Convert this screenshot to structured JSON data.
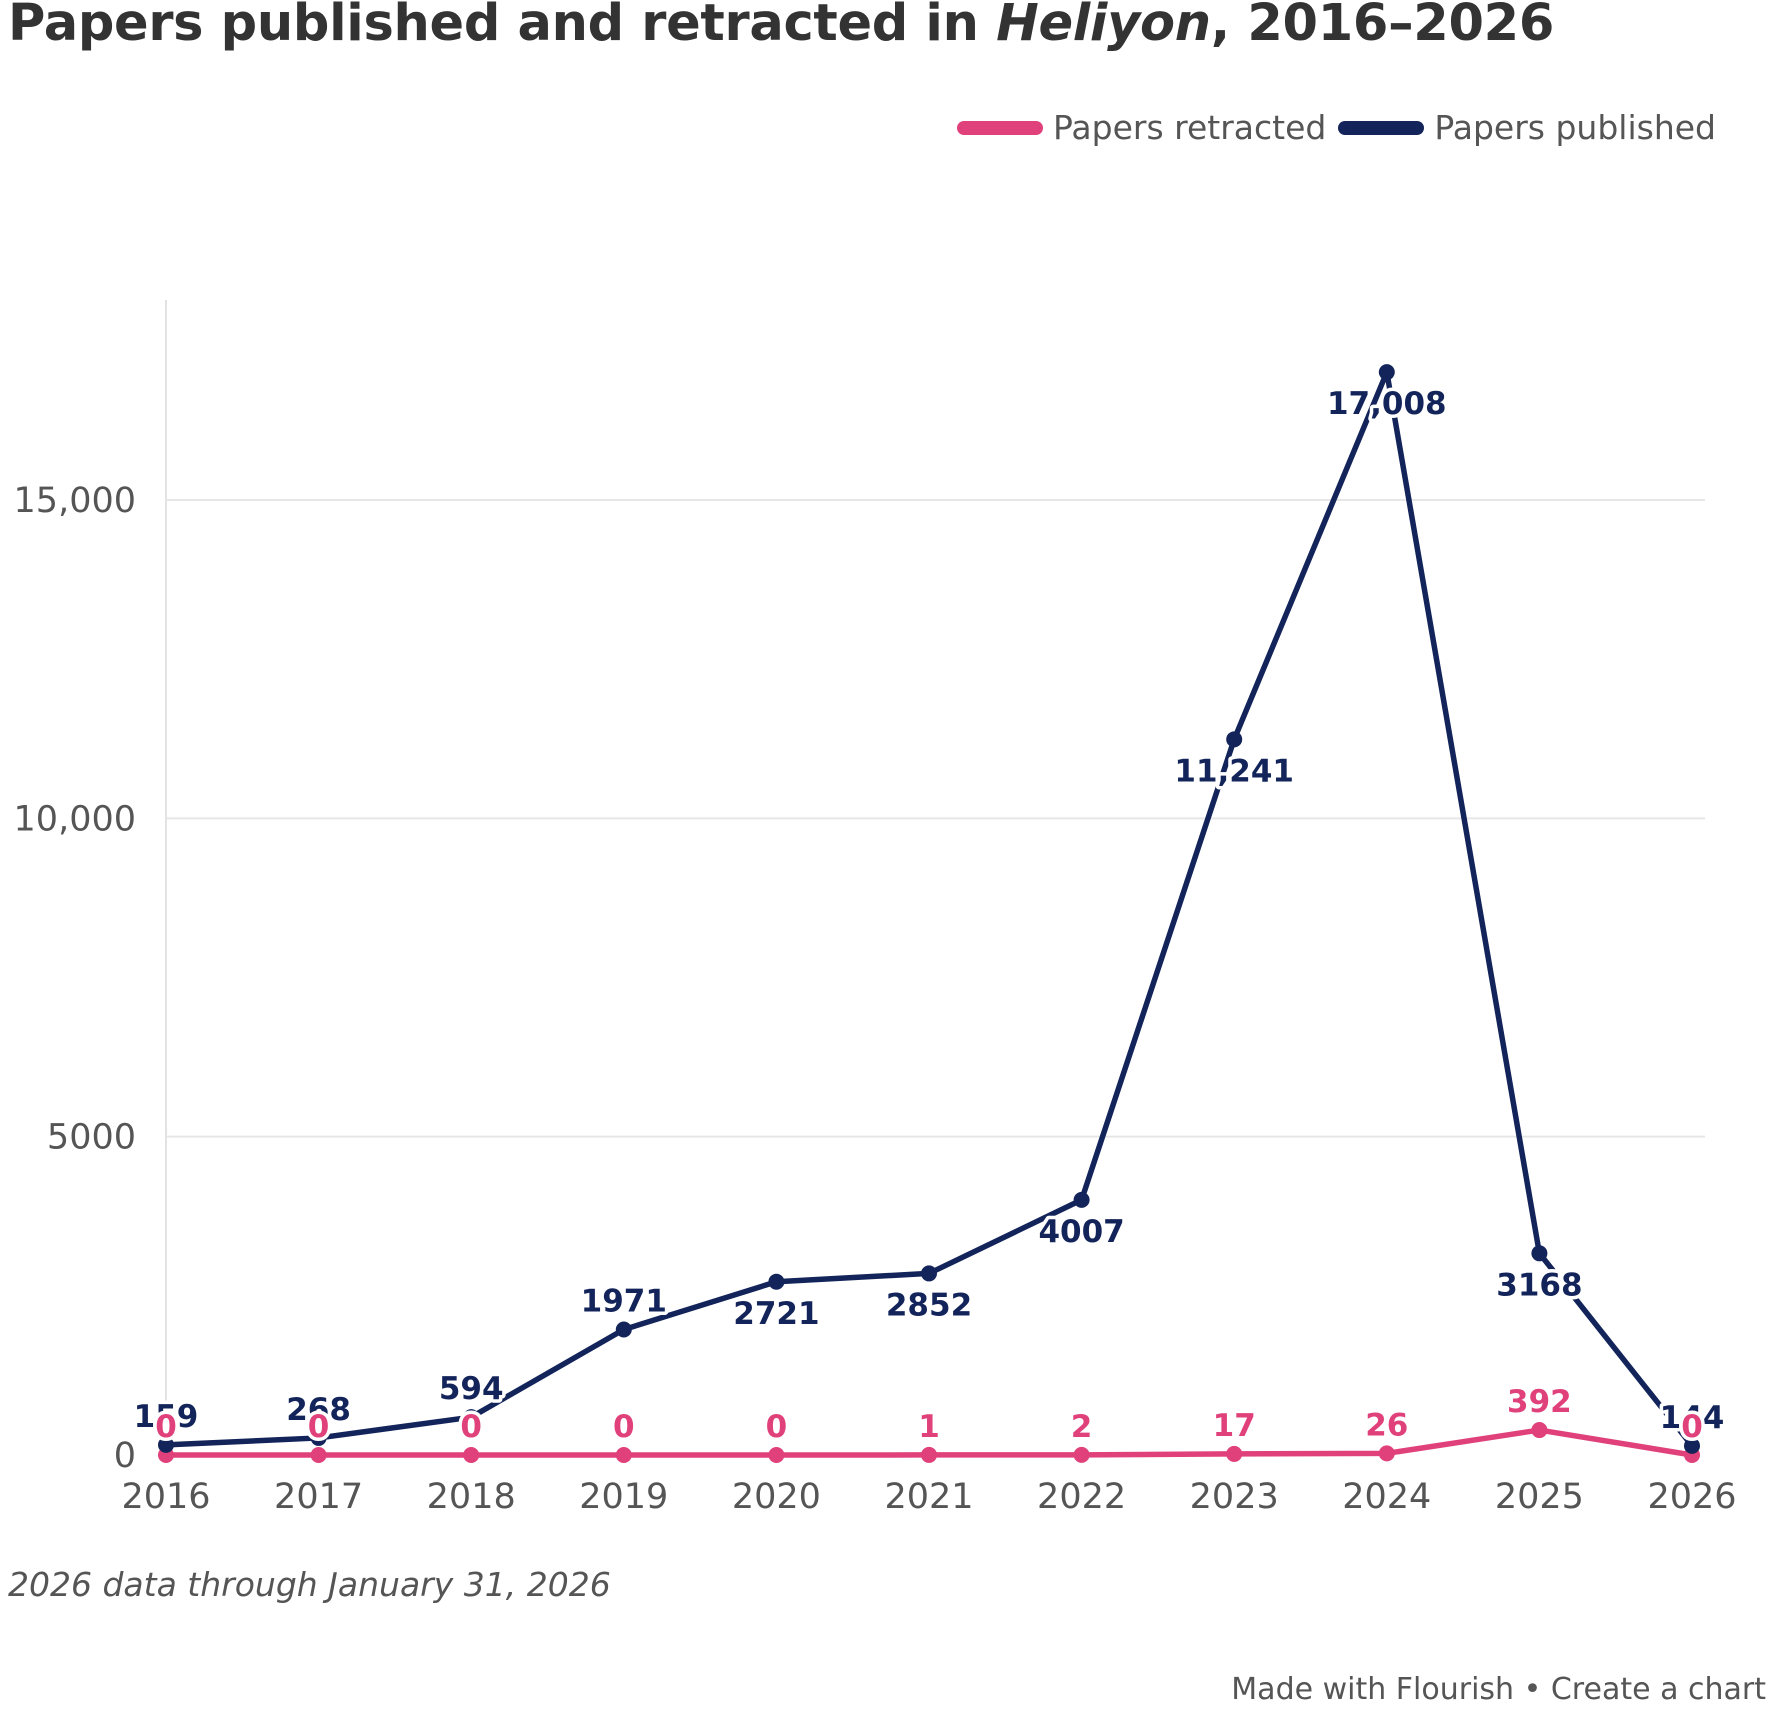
{
  "title": {
    "prefix": "Papers published and retracted in ",
    "italic": "Heliyon",
    "suffix": ", 2016–2026"
  },
  "legend": [
    {
      "label": "Papers retracted",
      "color": "#e0417a"
    },
    {
      "label": "Papers published",
      "color": "#13245a"
    }
  ],
  "footnote": "2026 data through January 31, 2026",
  "credit": {
    "made_with": "Made with Flourish",
    "separator": "•",
    "create": "Create a chart"
  },
  "chart_data": {
    "type": "line",
    "title": "Papers published and retracted in Heliyon, 2016–2026",
    "x": [
      "2016",
      "2017",
      "2018",
      "2019",
      "2020",
      "2021",
      "2022",
      "2023",
      "2024",
      "2025",
      "2026"
    ],
    "ylim": [
      0,
      17500
    ],
    "y_ticks": [
      0,
      5000,
      10000,
      15000
    ],
    "y_tick_labels": [
      "0",
      "5000",
      "10,000",
      "15,000"
    ],
    "grid": true,
    "legend_position": "top-right",
    "series": [
      {
        "name": "Papers published",
        "color": "#13245a",
        "values": [
          159,
          268,
          594,
          1971,
          2721,
          2852,
          4007,
          11241,
          17008,
          3168,
          144
        ],
        "labels": [
          "159",
          "268",
          "594",
          "1971",
          "2721",
          "2852",
          "4007",
          "11,241",
          "17,008",
          "3168",
          "144"
        ],
        "label_position": [
          "above",
          "above",
          "above",
          "above",
          "below",
          "below",
          "below",
          "below",
          "below",
          "below",
          "above"
        ]
      },
      {
        "name": "Papers retracted",
        "color": "#e0417a",
        "values": [
          0,
          0,
          0,
          0,
          0,
          1,
          2,
          17,
          26,
          392,
          0
        ],
        "labels": [
          "0",
          "0",
          "0",
          "0",
          "0",
          "1",
          "2",
          "17",
          "26",
          "392",
          "0"
        ],
        "label_position": [
          "above",
          "above",
          "above",
          "above",
          "above",
          "above",
          "above",
          "above",
          "above",
          "above",
          "above"
        ]
      }
    ]
  }
}
